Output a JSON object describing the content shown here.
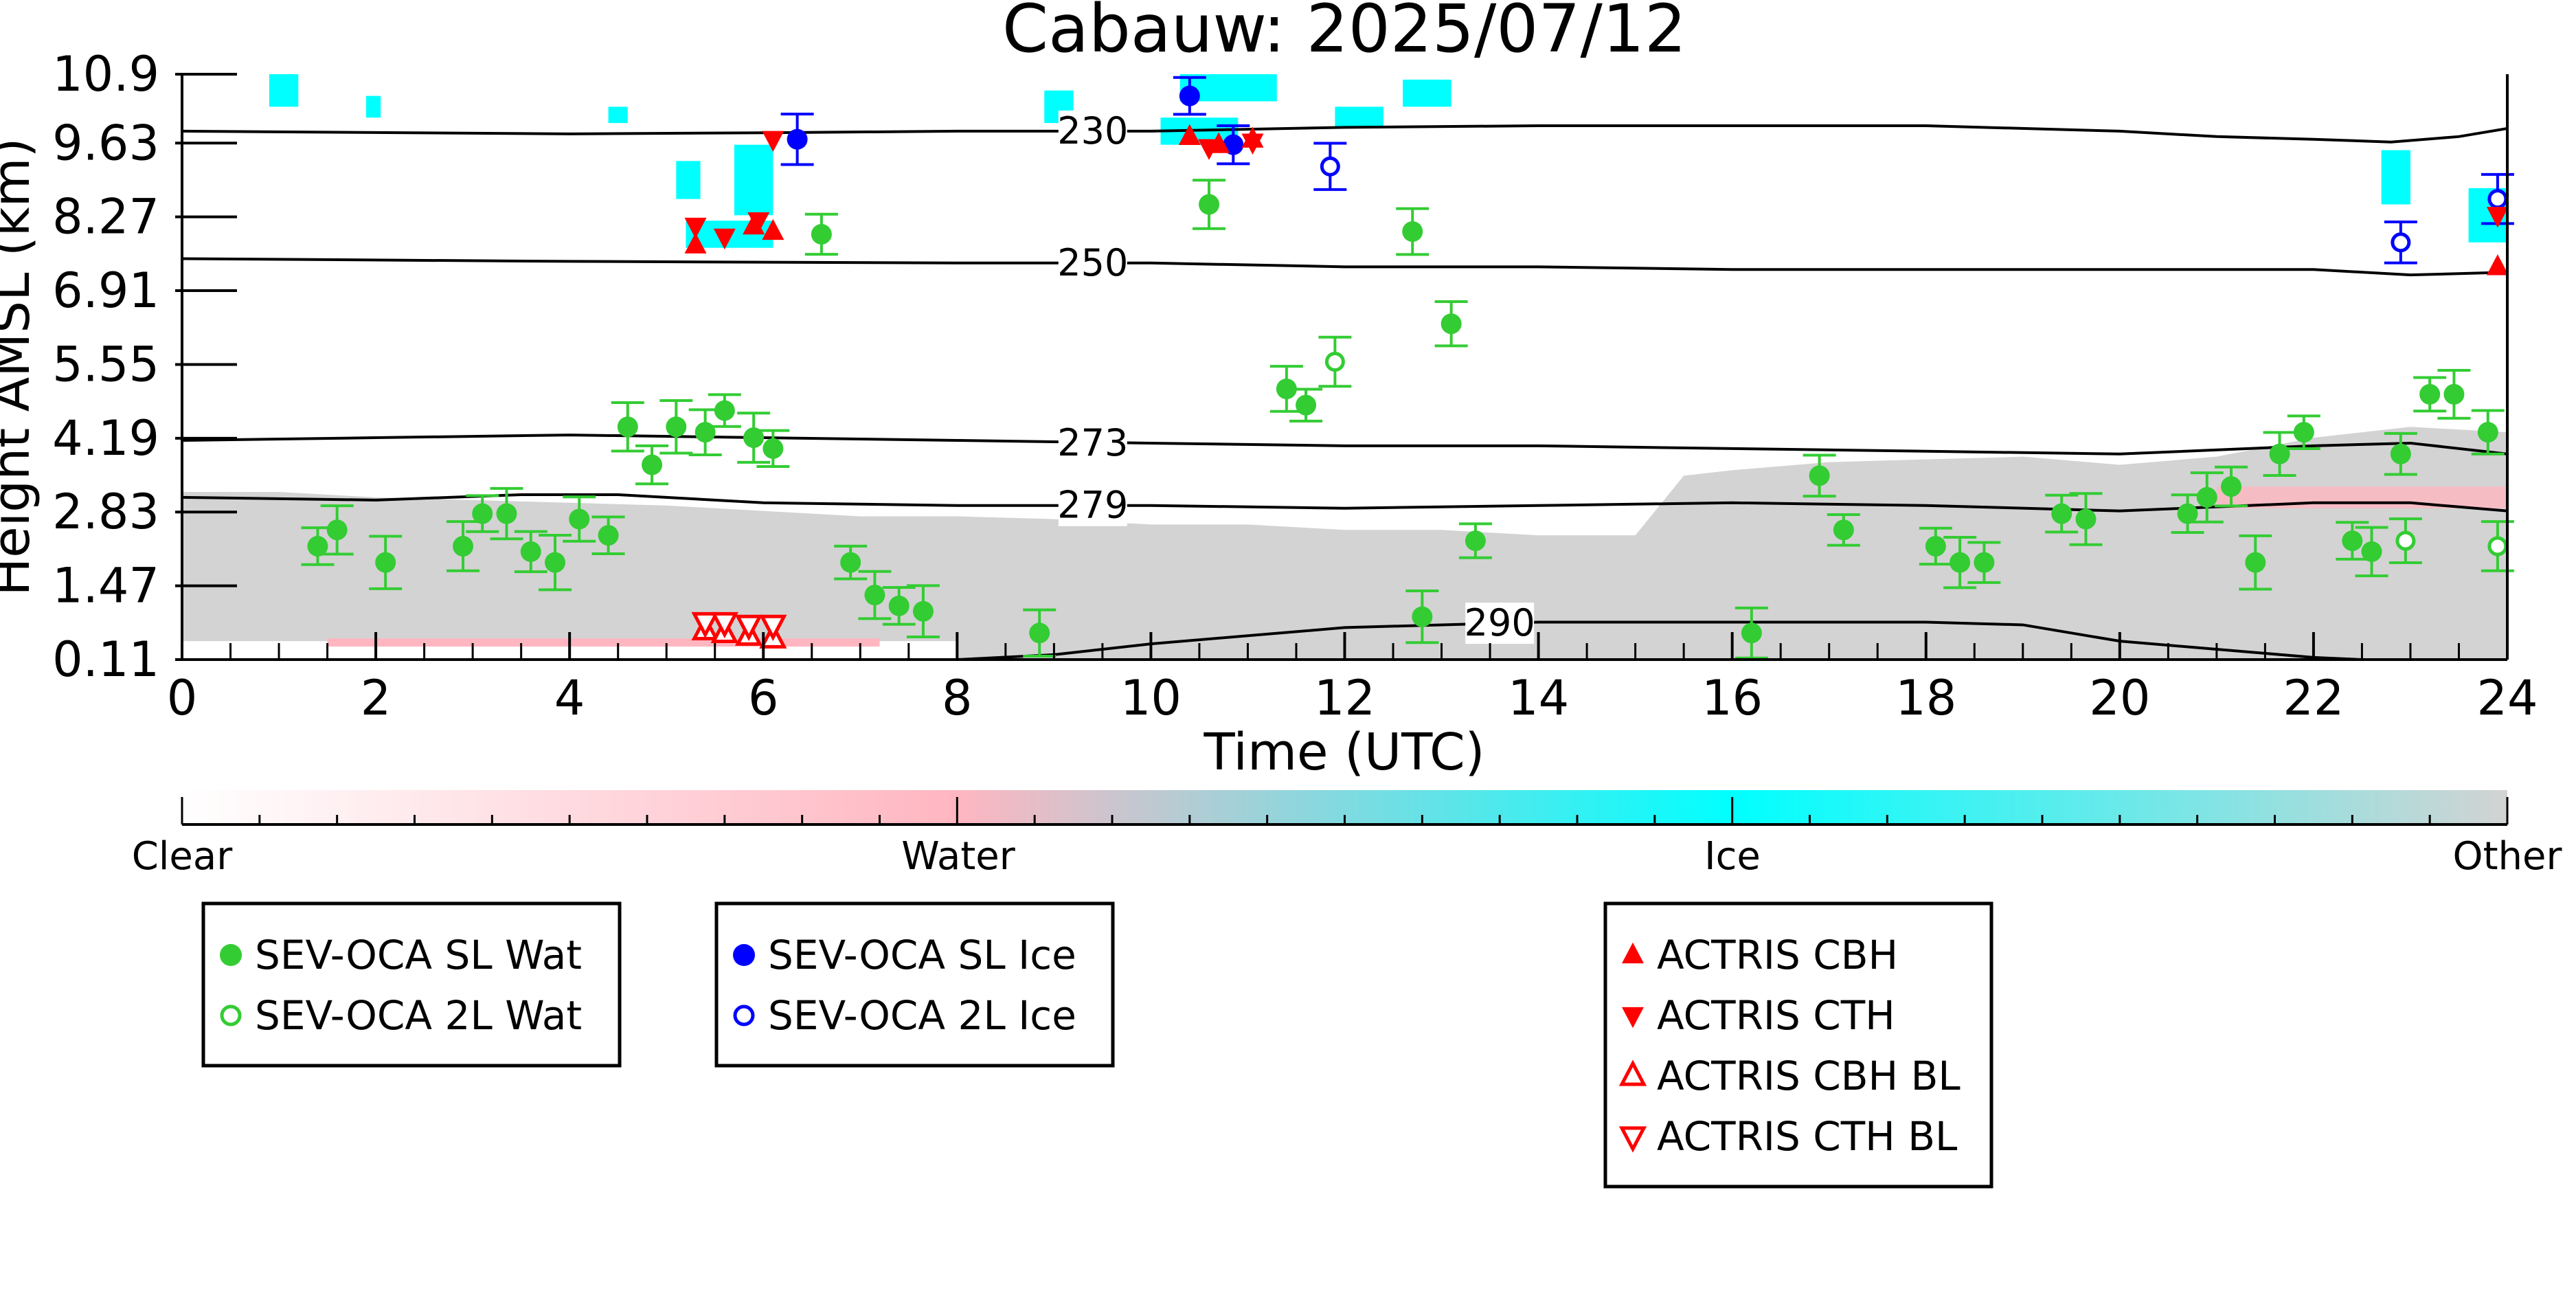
{
  "chart_data": {
    "type": "scatter",
    "title": "Cabauw: 2025/07/12",
    "xlabel": "Time (UTC)",
    "ylabel": "Height AMSL (km)",
    "xlim": [
      0,
      24
    ],
    "ylim": [
      0.11,
      10.9
    ],
    "x_ticks": [
      0,
      2,
      4,
      6,
      8,
      10,
      12,
      14,
      16,
      18,
      20,
      22,
      24
    ],
    "y_ticks": [
      0.11,
      1.47,
      2.83,
      4.19,
      5.55,
      6.91,
      8.27,
      9.63,
      10.9
    ],
    "y_tick_labels": [
      "0.11",
      "1.47",
      "2.83",
      "4.19",
      "5.55",
      "6.91",
      "8.27",
      "9.63",
      "10.9"
    ],
    "colorbar": {
      "labels": [
        "Clear",
        "Water",
        "Ice",
        "Other"
      ],
      "colors": [
        "#ffffff",
        "#ffb6c1",
        "#00ffff",
        "#d3d3d3"
      ]
    },
    "temperature_contours": [
      {
        "label": "230",
        "points": [
          [
            0,
            9.85
          ],
          [
            4,
            9.8
          ],
          [
            6,
            9.82
          ],
          [
            8,
            9.85
          ],
          [
            10,
            9.85
          ],
          [
            12,
            9.92
          ],
          [
            14,
            9.95
          ],
          [
            16,
            9.95
          ],
          [
            18,
            9.95
          ],
          [
            20,
            9.85
          ],
          [
            21,
            9.75
          ],
          [
            22,
            9.7
          ],
          [
            22.8,
            9.65
          ],
          [
            23.5,
            9.75
          ],
          [
            24,
            9.9
          ]
        ]
      },
      {
        "label": "250",
        "points": [
          [
            0,
            7.5
          ],
          [
            4,
            7.45
          ],
          [
            8,
            7.42
          ],
          [
            10,
            7.42
          ],
          [
            12,
            7.35
          ],
          [
            14,
            7.35
          ],
          [
            16,
            7.3
          ],
          [
            18,
            7.3
          ],
          [
            20,
            7.3
          ],
          [
            22,
            7.3
          ],
          [
            23,
            7.2
          ],
          [
            24,
            7.25
          ]
        ]
      },
      {
        "label": "273",
        "points": [
          [
            0,
            4.15
          ],
          [
            2,
            4.2
          ],
          [
            4,
            4.25
          ],
          [
            6,
            4.2
          ],
          [
            8,
            4.15
          ],
          [
            10,
            4.1
          ],
          [
            12,
            4.05
          ],
          [
            14,
            4.05
          ],
          [
            16,
            4.0
          ],
          [
            18,
            3.95
          ],
          [
            20,
            3.9
          ],
          [
            22,
            4.05
          ],
          [
            23,
            4.1
          ],
          [
            24,
            3.9
          ]
        ]
      },
      {
        "label": "279",
        "points": [
          [
            0,
            3.1
          ],
          [
            2,
            3.05
          ],
          [
            3.5,
            3.15
          ],
          [
            4.5,
            3.15
          ],
          [
            6,
            3.0
          ],
          [
            8,
            2.95
          ],
          [
            10,
            2.95
          ],
          [
            12,
            2.9
          ],
          [
            14,
            2.95
          ],
          [
            16,
            3.0
          ],
          [
            18,
            2.95
          ],
          [
            20,
            2.85
          ],
          [
            22,
            3.0
          ],
          [
            23,
            3.0
          ],
          [
            24,
            2.85
          ]
        ]
      },
      {
        "label": "290",
        "points": [
          [
            8,
            0.11
          ],
          [
            9,
            0.2
          ],
          [
            10,
            0.4
          ],
          [
            11,
            0.55
          ],
          [
            12,
            0.7
          ],
          [
            13,
            0.75
          ],
          [
            14,
            0.8
          ],
          [
            16,
            0.8
          ],
          [
            18,
            0.8
          ],
          [
            19,
            0.75
          ],
          [
            19.5,
            0.6
          ],
          [
            20,
            0.45
          ],
          [
            21,
            0.3
          ],
          [
            22,
            0.15
          ],
          [
            22.5,
            0.11
          ]
        ]
      }
    ],
    "series": [
      {
        "name": "SEV-OCA SL Wat",
        "color": "#33cc33",
        "marker": "circle-filled",
        "points": [
          [
            1.4,
            2.2
          ],
          [
            1.6,
            2.5
          ],
          [
            2.1,
            1.9
          ],
          [
            2.9,
            2.2
          ],
          [
            3.1,
            2.8
          ],
          [
            3.35,
            2.8
          ],
          [
            3.6,
            2.1
          ],
          [
            3.85,
            1.9
          ],
          [
            4.1,
            2.7
          ],
          [
            4.4,
            2.4
          ],
          [
            4.6,
            4.4
          ],
          [
            4.85,
            3.7
          ],
          [
            5.1,
            4.4
          ],
          [
            5.4,
            4.3
          ],
          [
            5.6,
            4.7
          ],
          [
            5.9,
            4.2
          ],
          [
            6.1,
            4.0
          ],
          [
            6.6,
            7.95
          ],
          [
            6.9,
            1.9
          ],
          [
            7.15,
            1.3
          ],
          [
            7.4,
            1.1
          ],
          [
            7.65,
            1.0
          ],
          [
            8.85,
            0.6
          ],
          [
            10.6,
            8.5
          ],
          [
            11.4,
            5.1
          ],
          [
            11.6,
            4.8
          ],
          [
            12.7,
            8.0
          ],
          [
            12.8,
            0.9
          ],
          [
            13.1,
            6.3
          ],
          [
            13.35,
            2.3
          ],
          [
            16.2,
            0.6
          ],
          [
            16.9,
            3.5
          ],
          [
            17.15,
            2.5
          ],
          [
            18.1,
            2.2
          ],
          [
            18.35,
            1.9
          ],
          [
            18.6,
            1.9
          ],
          [
            19.4,
            2.8
          ],
          [
            19.65,
            2.7
          ],
          [
            20.7,
            2.8
          ],
          [
            20.9,
            3.1
          ],
          [
            21.15,
            3.3
          ],
          [
            21.4,
            1.9
          ],
          [
            21.65,
            3.9
          ],
          [
            21.9,
            4.3
          ],
          [
            22.4,
            2.3
          ],
          [
            22.6,
            2.1
          ],
          [
            22.9,
            3.9
          ],
          [
            23.2,
            5.0
          ],
          [
            23.45,
            5.0
          ],
          [
            23.8,
            4.3
          ]
        ]
      },
      {
        "name": "SEV-OCA 2L Wat",
        "color": "#33cc33",
        "marker": "circle-open",
        "points": [
          [
            11.9,
            5.6
          ],
          [
            22.95,
            2.3
          ],
          [
            23.9,
            2.2
          ]
        ]
      },
      {
        "name": "SEV-OCA SL Ice",
        "color": "#0000ff",
        "marker": "circle-filled",
        "points": [
          [
            6.35,
            9.7
          ],
          [
            10.4,
            10.5
          ],
          [
            10.85,
            9.6
          ]
        ]
      },
      {
        "name": "SEV-OCA 2L Ice",
        "color": "#0000ff",
        "marker": "circle-open",
        "points": [
          [
            11.85,
            9.2
          ],
          [
            22.9,
            7.8
          ],
          [
            23.9,
            8.6
          ]
        ]
      },
      {
        "name": "ACTRIS CBH",
        "color": "#ff0000",
        "marker": "triangle-up-filled",
        "points": [
          [
            5.3,
            7.75
          ],
          [
            5.9,
            8.1
          ],
          [
            6.1,
            8.0
          ],
          [
            10.4,
            9.75
          ],
          [
            10.7,
            9.6
          ],
          [
            11.05,
            9.7
          ],
          [
            23.9,
            7.35
          ]
        ]
      },
      {
        "name": "ACTRIS CTH",
        "color": "#ff0000",
        "marker": "triangle-down-filled",
        "points": [
          [
            5.3,
            8.1
          ],
          [
            5.6,
            7.9
          ],
          [
            5.95,
            8.2
          ],
          [
            6.1,
            9.7
          ],
          [
            10.6,
            9.55
          ],
          [
            11.05,
            9.65
          ],
          [
            23.9,
            8.3
          ]
        ]
      },
      {
        "name": "ACTRIS CBH BL",
        "color": "#ff0000",
        "marker": "triangle-up-open",
        "points": [
          [
            5.4,
            0.65
          ],
          [
            5.6,
            0.6
          ],
          [
            5.85,
            0.55
          ],
          [
            6.1,
            0.5
          ]
        ]
      },
      {
        "name": "ACTRIS CTH BL",
        "color": "#ff0000",
        "marker": "triangle-down-open",
        "points": [
          [
            5.4,
            0.8
          ],
          [
            5.6,
            0.8
          ],
          [
            5.85,
            0.75
          ],
          [
            6.1,
            0.75
          ]
        ]
      }
    ],
    "legend_groups": [
      [
        "SEV-OCA SL Wat",
        "SEV-OCA 2L Wat"
      ],
      [
        "SEV-OCA SL Ice",
        "SEV-OCA 2L Ice"
      ],
      [
        "ACTRIS CBH",
        "ACTRIS CTH",
        "ACTRIS CBH BL",
        "ACTRIS CTH BL"
      ]
    ],
    "grid": false,
    "legend_position": "bottom"
  }
}
